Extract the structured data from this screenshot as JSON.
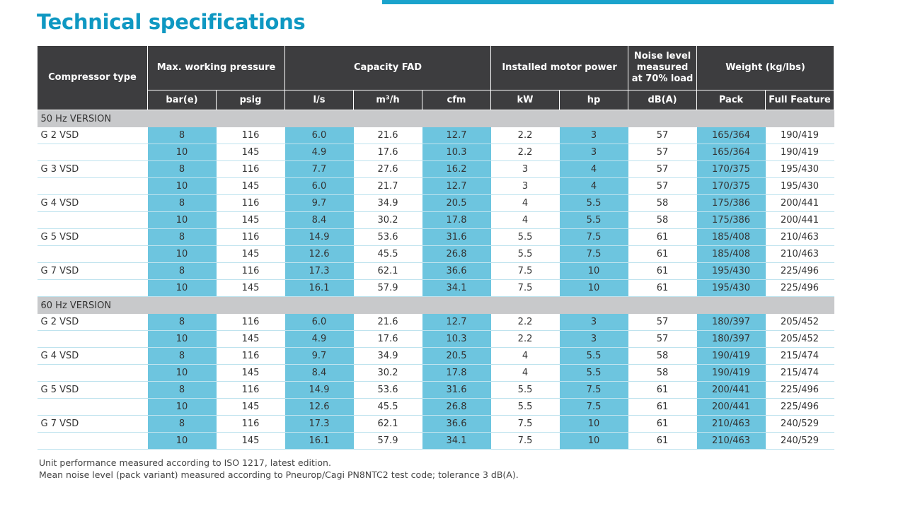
{
  "header": {
    "title": "Technical specifications"
  },
  "table": {
    "group_headers": [
      "Compressor type",
      "Max. working pressure",
      "Capacity FAD",
      "Installed motor power",
      "Noise level measured at 70% load",
      "Weight (kg/lbs)"
    ],
    "units": [
      "bar(e)",
      "psig",
      "l/s",
      "m³/h",
      "cfm",
      "kW",
      "hp",
      "dB(A)",
      "Pack",
      "Full Feature"
    ],
    "sections": [
      {
        "label": "50 Hz VERSION",
        "models": [
          {
            "name": "G 2 VSD",
            "rows": [
              [
                "8",
                "116",
                "6.0",
                "21.6",
                "12.7",
                "2.2",
                "3",
                "57",
                "165/364",
                "190/419"
              ],
              [
                "10",
                "145",
                "4.9",
                "17.6",
                "10.3",
                "2.2",
                "3",
                "57",
                "165/364",
                "190/419"
              ]
            ]
          },
          {
            "name": "G 3 VSD",
            "rows": [
              [
                "8",
                "116",
                "7.7",
                "27.6",
                "16.2",
                "3",
                "4",
                "57",
                "170/375",
                "195/430"
              ],
              [
                "10",
                "145",
                "6.0",
                "21.7",
                "12.7",
                "3",
                "4",
                "57",
                "170/375",
                "195/430"
              ]
            ]
          },
          {
            "name": "G 4 VSD",
            "rows": [
              [
                "8",
                "116",
                "9.7",
                "34.9",
                "20.5",
                "4",
                "5.5",
                "58",
                "175/386",
                "200/441"
              ],
              [
                "10",
                "145",
                "8.4",
                "30.2",
                "17.8",
                "4",
                "5.5",
                "58",
                "175/386",
                "200/441"
              ]
            ]
          },
          {
            "name": "G 5 VSD",
            "rows": [
              [
                "8",
                "116",
                "14.9",
                "53.6",
                "31.6",
                "5.5",
                "7.5",
                "61",
                "185/408",
                "210/463"
              ],
              [
                "10",
                "145",
                "12.6",
                "45.5",
                "26.8",
                "5.5",
                "7.5",
                "61",
                "185/408",
                "210/463"
              ]
            ]
          },
          {
            "name": "G 7 VSD",
            "rows": [
              [
                "8",
                "116",
                "17.3",
                "62.1",
                "36.6",
                "7.5",
                "10",
                "61",
                "195/430",
                "225/496"
              ],
              [
                "10",
                "145",
                "16.1",
                "57.9",
                "34.1",
                "7.5",
                "10",
                "61",
                "195/430",
                "225/496"
              ]
            ]
          }
        ]
      },
      {
        "label": "60 Hz VERSION",
        "models": [
          {
            "name": "G 2 VSD",
            "rows": [
              [
                "8",
                "116",
                "6.0",
                "21.6",
                "12.7",
                "2.2",
                "3",
                "57",
                "180/397",
                "205/452"
              ],
              [
                "10",
                "145",
                "4.9",
                "17.6",
                "10.3",
                "2.2",
                "3",
                "57",
                "180/397",
                "205/452"
              ]
            ]
          },
          {
            "name": "G 4 VSD",
            "rows": [
              [
                "8",
                "116",
                "9.7",
                "34.9",
                "20.5",
                "4",
                "5.5",
                "58",
                "190/419",
                "215/474"
              ],
              [
                "10",
                "145",
                "8.4",
                "30.2",
                "17.8",
                "4",
                "5.5",
                "58",
                "190/419",
                "215/474"
              ]
            ]
          },
          {
            "name": "G 5 VSD",
            "rows": [
              [
                "8",
                "116",
                "14.9",
                "53.6",
                "31.6",
                "5.5",
                "7.5",
                "61",
                "200/441",
                "225/496"
              ],
              [
                "10",
                "145",
                "12.6",
                "45.5",
                "26.8",
                "5.5",
                "7.5",
                "61",
                "200/441",
                "225/496"
              ]
            ]
          },
          {
            "name": "G 7 VSD",
            "rows": [
              [
                "8",
                "116",
                "17.3",
                "62.1",
                "36.6",
                "7.5",
                "10",
                "61",
                "210/463",
                "240/529"
              ],
              [
                "10",
                "145",
                "16.1",
                "57.9",
                "34.1",
                "7.5",
                "10",
                "61",
                "210/463",
                "240/529"
              ]
            ]
          }
        ]
      }
    ]
  },
  "notes": [
    "Unit performance measured according to ISO 1217, latest edition.",
    "Mean noise level (pack variant) measured according to Pneurop/Cagi PN8NTC2 test code; tolerance 3 dB(A)."
  ]
}
